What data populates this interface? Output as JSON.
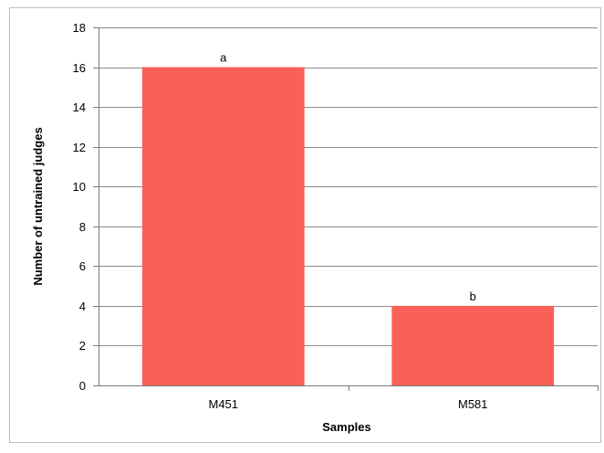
{
  "chart_data": {
    "type": "bar",
    "categories": [
      "M451",
      "M581"
    ],
    "values": [
      16,
      4
    ],
    "data_labels": [
      "a",
      "b"
    ],
    "xlabel": "Samples",
    "ylabel": "Number of untrained judges",
    "ylim": [
      0,
      18
    ],
    "ytick_step": 2,
    "yticks": [
      "0",
      "2",
      "4",
      "6",
      "8",
      "10",
      "12",
      "14",
      "16",
      "18"
    ],
    "grid": true,
    "legend": "none",
    "colors": {
      "bar": "#f96057",
      "grid": "#8c8c8c",
      "axis": "#7a7a7a",
      "frame": "#bdbdbd"
    }
  }
}
